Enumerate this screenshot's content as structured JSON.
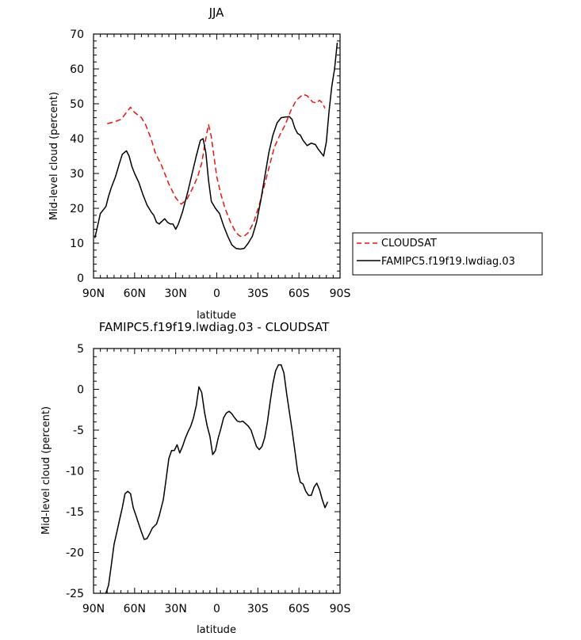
{
  "chart_data": [
    {
      "type": "line",
      "title": "JJA",
      "xlabel": "latitude",
      "ylabel": "Mid-level cloud (percent)",
      "xlim": [
        90,
        -90
      ],
      "ylim": [
        0,
        70
      ],
      "xticks": [
        90,
        60,
        30,
        0,
        -30,
        -60,
        -90
      ],
      "xtick_labels": [
        "90N",
        "60N",
        "30N",
        "0",
        "30S",
        "60S",
        "90S"
      ],
      "yticks": [
        0,
        10,
        20,
        30,
        40,
        50,
        60,
        70
      ],
      "ytick_labels": [
        "0",
        "10",
        "20",
        "30",
        "40",
        "50",
        "60",
        "70"
      ],
      "legend_position": "right",
      "series": [
        {
          "name": "CLOUDSAT",
          "color": "#e8140c",
          "dash": "dashed",
          "points": [
            [
              80,
              44.3
            ],
            [
              75,
              44.8
            ],
            [
              70,
              45.5
            ],
            [
              66,
              47.5
            ],
            [
              63,
              49
            ],
            [
              60,
              47.5
            ],
            [
              55,
              46
            ],
            [
              52,
              44
            ],
            [
              48,
              40
            ],
            [
              45,
              36
            ],
            [
              40,
              32
            ],
            [
              35,
              27
            ],
            [
              30,
              23
            ],
            [
              26,
              21.2
            ],
            [
              22,
              22.5
            ],
            [
              18,
              25.5
            ],
            [
              14,
              29
            ],
            [
              11,
              33
            ],
            [
              8,
              40
            ],
            [
              6,
              44
            ],
            [
              4,
              40.5
            ],
            [
              0,
              29
            ],
            [
              -3,
              24
            ],
            [
              -6,
              20
            ],
            [
              -10,
              16
            ],
            [
              -14,
              13
            ],
            [
              -17,
              12
            ],
            [
              -20,
              12
            ],
            [
              -23,
              13
            ],
            [
              -27,
              16
            ],
            [
              -31,
              21
            ],
            [
              -35,
              27
            ],
            [
              -39,
              33
            ],
            [
              -42,
              37.5
            ],
            [
              -46,
              41
            ],
            [
              -50,
              44
            ],
            [
              -54,
              48
            ],
            [
              -58,
              51
            ],
            [
              -63,
              52.7
            ],
            [
              -66,
              52.3
            ],
            [
              -70,
              50.5
            ],
            [
              -73,
              50.2
            ],
            [
              -75,
              51
            ],
            [
              -77,
              50.3
            ],
            [
              -79,
              48.7
            ]
          ]
        },
        {
          "name": "FAMIPC5.f19f19.lwdiag.03",
          "color": "#000000",
          "dash": "solid",
          "points": [
            [
              89,
              11.5
            ],
            [
              87,
              15
            ],
            [
              85,
              18.5
            ],
            [
              83,
              19.5
            ],
            [
              81,
              20.5
            ],
            [
              79,
              23.5
            ],
            [
              77,
              26
            ],
            [
              74,
              29
            ],
            [
              71,
              33
            ],
            [
              69,
              35.5
            ],
            [
              66,
              36.5
            ],
            [
              64,
              35
            ],
            [
              62,
              32
            ],
            [
              60,
              30
            ],
            [
              57,
              27.5
            ],
            [
              54,
              24
            ],
            [
              51,
              21
            ],
            [
              48,
              19
            ],
            [
              46,
              18
            ],
            [
              44,
              16
            ],
            [
              42,
              15.5
            ],
            [
              40,
              16.3
            ],
            [
              38,
              17
            ],
            [
              36,
              16
            ],
            [
              34,
              15.5
            ],
            [
              32,
              15.5
            ],
            [
              30,
              14
            ],
            [
              28,
              15.5
            ],
            [
              25,
              19
            ],
            [
              21,
              25
            ],
            [
              18,
              30
            ],
            [
              15,
              35
            ],
            [
              12,
              39.5
            ],
            [
              10,
              40
            ],
            [
              8,
              36
            ],
            [
              6,
              28
            ],
            [
              4,
              22
            ],
            [
              1,
              20
            ],
            [
              -2,
              18.5
            ],
            [
              -5,
              15
            ],
            [
              -8,
              12
            ],
            [
              -11,
              9.5
            ],
            [
              -14,
              8.5
            ],
            [
              -17,
              8.3
            ],
            [
              -20,
              8.5
            ],
            [
              -23,
              10
            ],
            [
              -26,
              12
            ],
            [
              -29,
              16
            ],
            [
              -32,
              22
            ],
            [
              -35,
              29
            ],
            [
              -38,
              36
            ],
            [
              -41,
              41
            ],
            [
              -44,
              44.5
            ],
            [
              -47,
              46
            ],
            [
              -50,
              46.2
            ],
            [
              -53,
              46.3
            ],
            [
              -55,
              45.5
            ],
            [
              -57,
              43
            ],
            [
              -59,
              41.5
            ],
            [
              -61,
              41
            ],
            [
              -63,
              39.5
            ],
            [
              -66,
              38
            ],
            [
              -69,
              38.7
            ],
            [
              -72,
              38.3
            ],
            [
              -74,
              37
            ],
            [
              -76,
              36
            ],
            [
              -77,
              35.5
            ],
            [
              -78,
              35
            ],
            [
              -79,
              37
            ],
            [
              -80,
              39
            ],
            [
              -82,
              48
            ],
            [
              -84,
              55
            ],
            [
              -86,
              60
            ],
            [
              -88,
              67.5
            ]
          ]
        }
      ]
    },
    {
      "type": "line",
      "title": "FAMIPC5.f19f19.lwdiag.03 - CLOUDSAT",
      "xlabel": "latitude",
      "ylabel": "Mid-level cloud (percent)",
      "xlim": [
        90,
        -90
      ],
      "ylim": [
        -25,
        5
      ],
      "xticks": [
        90,
        60,
        30,
        0,
        -30,
        -60,
        -90
      ],
      "xtick_labels": [
        "90N",
        "60N",
        "30N",
        "0",
        "30S",
        "60S",
        "90S"
      ],
      "yticks": [
        -25,
        -20,
        -15,
        -10,
        -5,
        0,
        5
      ],
      "ytick_labels": [
        "-25",
        "-20",
        "-15",
        "-10",
        "-5",
        "0",
        "5"
      ],
      "series": [
        {
          "color": "#000000",
          "dash": "solid",
          "points": [
            [
              81,
              -25
            ],
            [
              79,
              -24
            ],
            [
              77,
              -21.5
            ],
            [
              75,
              -19
            ],
            [
              73,
              -17.5
            ],
            [
              71,
              -16
            ],
            [
              69,
              -14.5
            ],
            [
              67,
              -12.8
            ],
            [
              65,
              -12.5
            ],
            [
              63,
              -12.8
            ],
            [
              61,
              -14.5
            ],
            [
              59,
              -15.5
            ],
            [
              57,
              -16.5
            ],
            [
              55,
              -17.5
            ],
            [
              53,
              -18.4
            ],
            [
              51,
              -18.3
            ],
            [
              49,
              -17.7
            ],
            [
              47,
              -17
            ],
            [
              44,
              -16.5
            ],
            [
              42,
              -15.5
            ],
            [
              39,
              -13.5
            ],
            [
              37,
              -11
            ],
            [
              35,
              -8.5
            ],
            [
              33,
              -7.5
            ],
            [
              31,
              -7.5
            ],
            [
              29,
              -6.8
            ],
            [
              27,
              -7.8
            ],
            [
              25,
              -7
            ],
            [
              23,
              -6
            ],
            [
              21,
              -5.2
            ],
            [
              19,
              -4.5
            ],
            [
              17,
              -3.5
            ],
            [
              15,
              -2
            ],
            [
              13,
              0.3
            ],
            [
              11,
              -0.4
            ],
            [
              9,
              -2.8
            ],
            [
              7,
              -4.5
            ],
            [
              5,
              -5.8
            ],
            [
              3,
              -8
            ],
            [
              1,
              -7.5
            ],
            [
              -1,
              -6
            ],
            [
              -3,
              -4.8
            ],
            [
              -5,
              -3.5
            ],
            [
              -7,
              -2.9
            ],
            [
              -9,
              -2.7
            ],
            [
              -11,
              -3
            ],
            [
              -13,
              -3.5
            ],
            [
              -15,
              -3.9
            ],
            [
              -17,
              -4
            ],
            [
              -19,
              -3.9
            ],
            [
              -21,
              -4.2
            ],
            [
              -23,
              -4.5
            ],
            [
              -25,
              -5
            ],
            [
              -27,
              -6
            ],
            [
              -29,
              -7
            ],
            [
              -31,
              -7.4
            ],
            [
              -33,
              -7
            ],
            [
              -35,
              -5.9
            ],
            [
              -37,
              -4
            ],
            [
              -39,
              -1.5
            ],
            [
              -41,
              0.7
            ],
            [
              -43,
              2.3
            ],
            [
              -45,
              3
            ],
            [
              -47,
              3
            ],
            [
              -49,
              2
            ],
            [
              -51,
              -0.5
            ],
            [
              -53,
              -2.8
            ],
            [
              -55,
              -5
            ],
            [
              -57,
              -7.5
            ],
            [
              -59,
              -10
            ],
            [
              -61,
              -11.4
            ],
            [
              -63,
              -11.6
            ],
            [
              -65,
              -12.5
            ],
            [
              -67,
              -13
            ],
            [
              -69,
              -13
            ],
            [
              -71,
              -12
            ],
            [
              -73,
              -11.5
            ],
            [
              -75,
              -12.3
            ],
            [
              -77,
              -13.5
            ],
            [
              -79,
              -14.5
            ],
            [
              -81,
              -13.8
            ]
          ]
        }
      ]
    }
  ]
}
